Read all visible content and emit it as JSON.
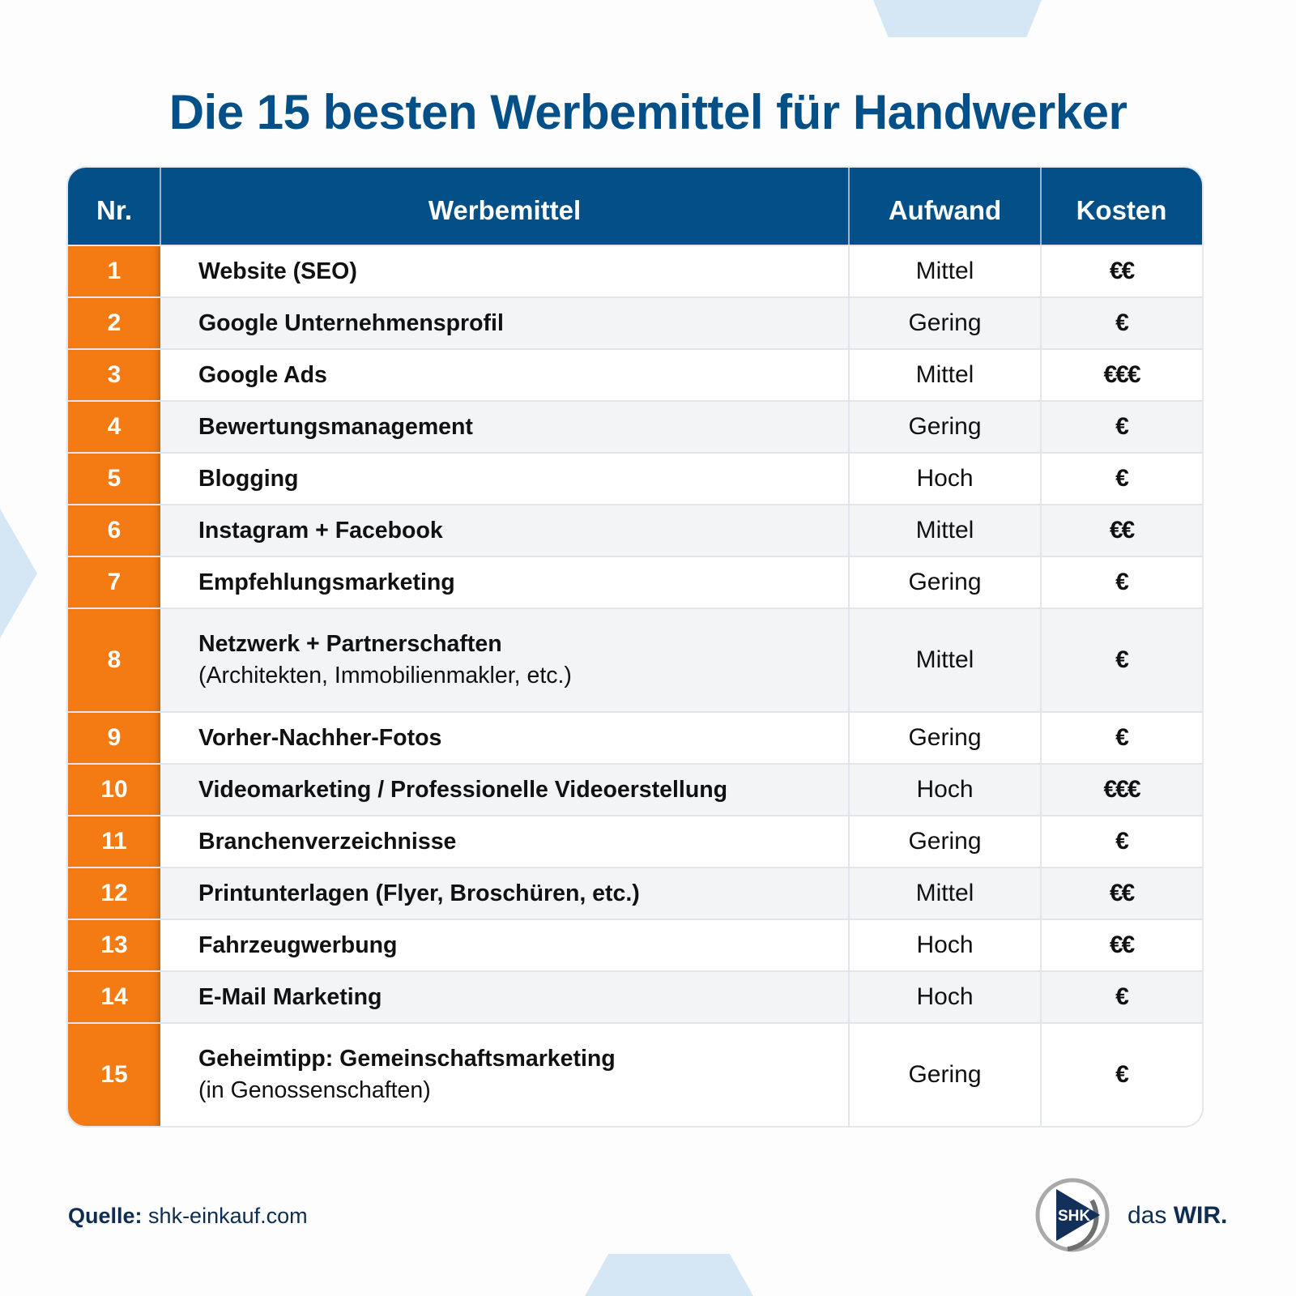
{
  "title": "Die 15 besten Werbemittel für Handwerker",
  "table": {
    "headers": {
      "nr": "Nr.",
      "werbemittel": "Werbemittel",
      "aufwand": "Aufwand",
      "kosten": "Kosten"
    },
    "rows": [
      {
        "nr": "1",
        "name": "Website (SEO)",
        "sub": "",
        "aufwand": "Mittel",
        "kosten": "€€"
      },
      {
        "nr": "2",
        "name": "Google Unternehmensprofil",
        "sub": "",
        "aufwand": "Gering",
        "kosten": "€"
      },
      {
        "nr": "3",
        "name": "Google Ads",
        "sub": "",
        "aufwand": "Mittel",
        "kosten": "€€€"
      },
      {
        "nr": "4",
        "name": "Bewertungsmanagement",
        "sub": "",
        "aufwand": "Gering",
        "kosten": "€"
      },
      {
        "nr": "5",
        "name": "Blogging",
        "sub": "",
        "aufwand": "Hoch",
        "kosten": "€"
      },
      {
        "nr": "6",
        "name": "Instagram + Facebook",
        "sub": "",
        "aufwand": "Mittel",
        "kosten": "€€"
      },
      {
        "nr": "7",
        "name": "Empfehlungsmarketing",
        "sub": "",
        "aufwand": "Gering",
        "kosten": "€"
      },
      {
        "nr": "8",
        "name": "Netzwerk + Partnerschaften",
        "sub": "(Architekten, Immobilienmakler, etc.)",
        "aufwand": "Mittel",
        "kosten": "€"
      },
      {
        "nr": "9",
        "name": "Vorher-Nachher-Fotos",
        "sub": "",
        "aufwand": "Gering",
        "kosten": "€"
      },
      {
        "nr": "10",
        "name": "Videomarketing / Professionelle Videoerstellung",
        "sub": "",
        "aufwand": "Hoch",
        "kosten": "€€€"
      },
      {
        "nr": "11",
        "name": "Branchenverzeichnisse",
        "sub": "",
        "aufwand": "Gering",
        "kosten": "€"
      },
      {
        "nr": "12",
        "name": "Printunterlagen (Flyer, Broschüren, etc.)",
        "sub": "",
        "aufwand": "Mittel",
        "kosten": "€€"
      },
      {
        "nr": "13",
        "name": "Fahrzeugwerbung",
        "sub": "",
        "aufwand": "Hoch",
        "kosten": "€€"
      },
      {
        "nr": "14",
        "name": "E-Mail Marketing",
        "sub": "",
        "aufwand": "Hoch",
        "kosten": "€"
      },
      {
        "nr": "15",
        "name": "Geheimtipp: Gemeinschaftsmarketing",
        "sub": "(in Genossenschaften)",
        "aufwand": "Gering",
        "kosten": "€"
      }
    ]
  },
  "footer": {
    "source_label": "Quelle:",
    "source_value": "shk-einkauf.com",
    "logo_mark": "SHK",
    "logo_text_light": "das",
    "logo_text_bold": "WIR."
  },
  "colors": {
    "brand_blue": "#034f87",
    "accent_orange": "#f47a13",
    "deco_light_blue": "#d5e7f5"
  }
}
